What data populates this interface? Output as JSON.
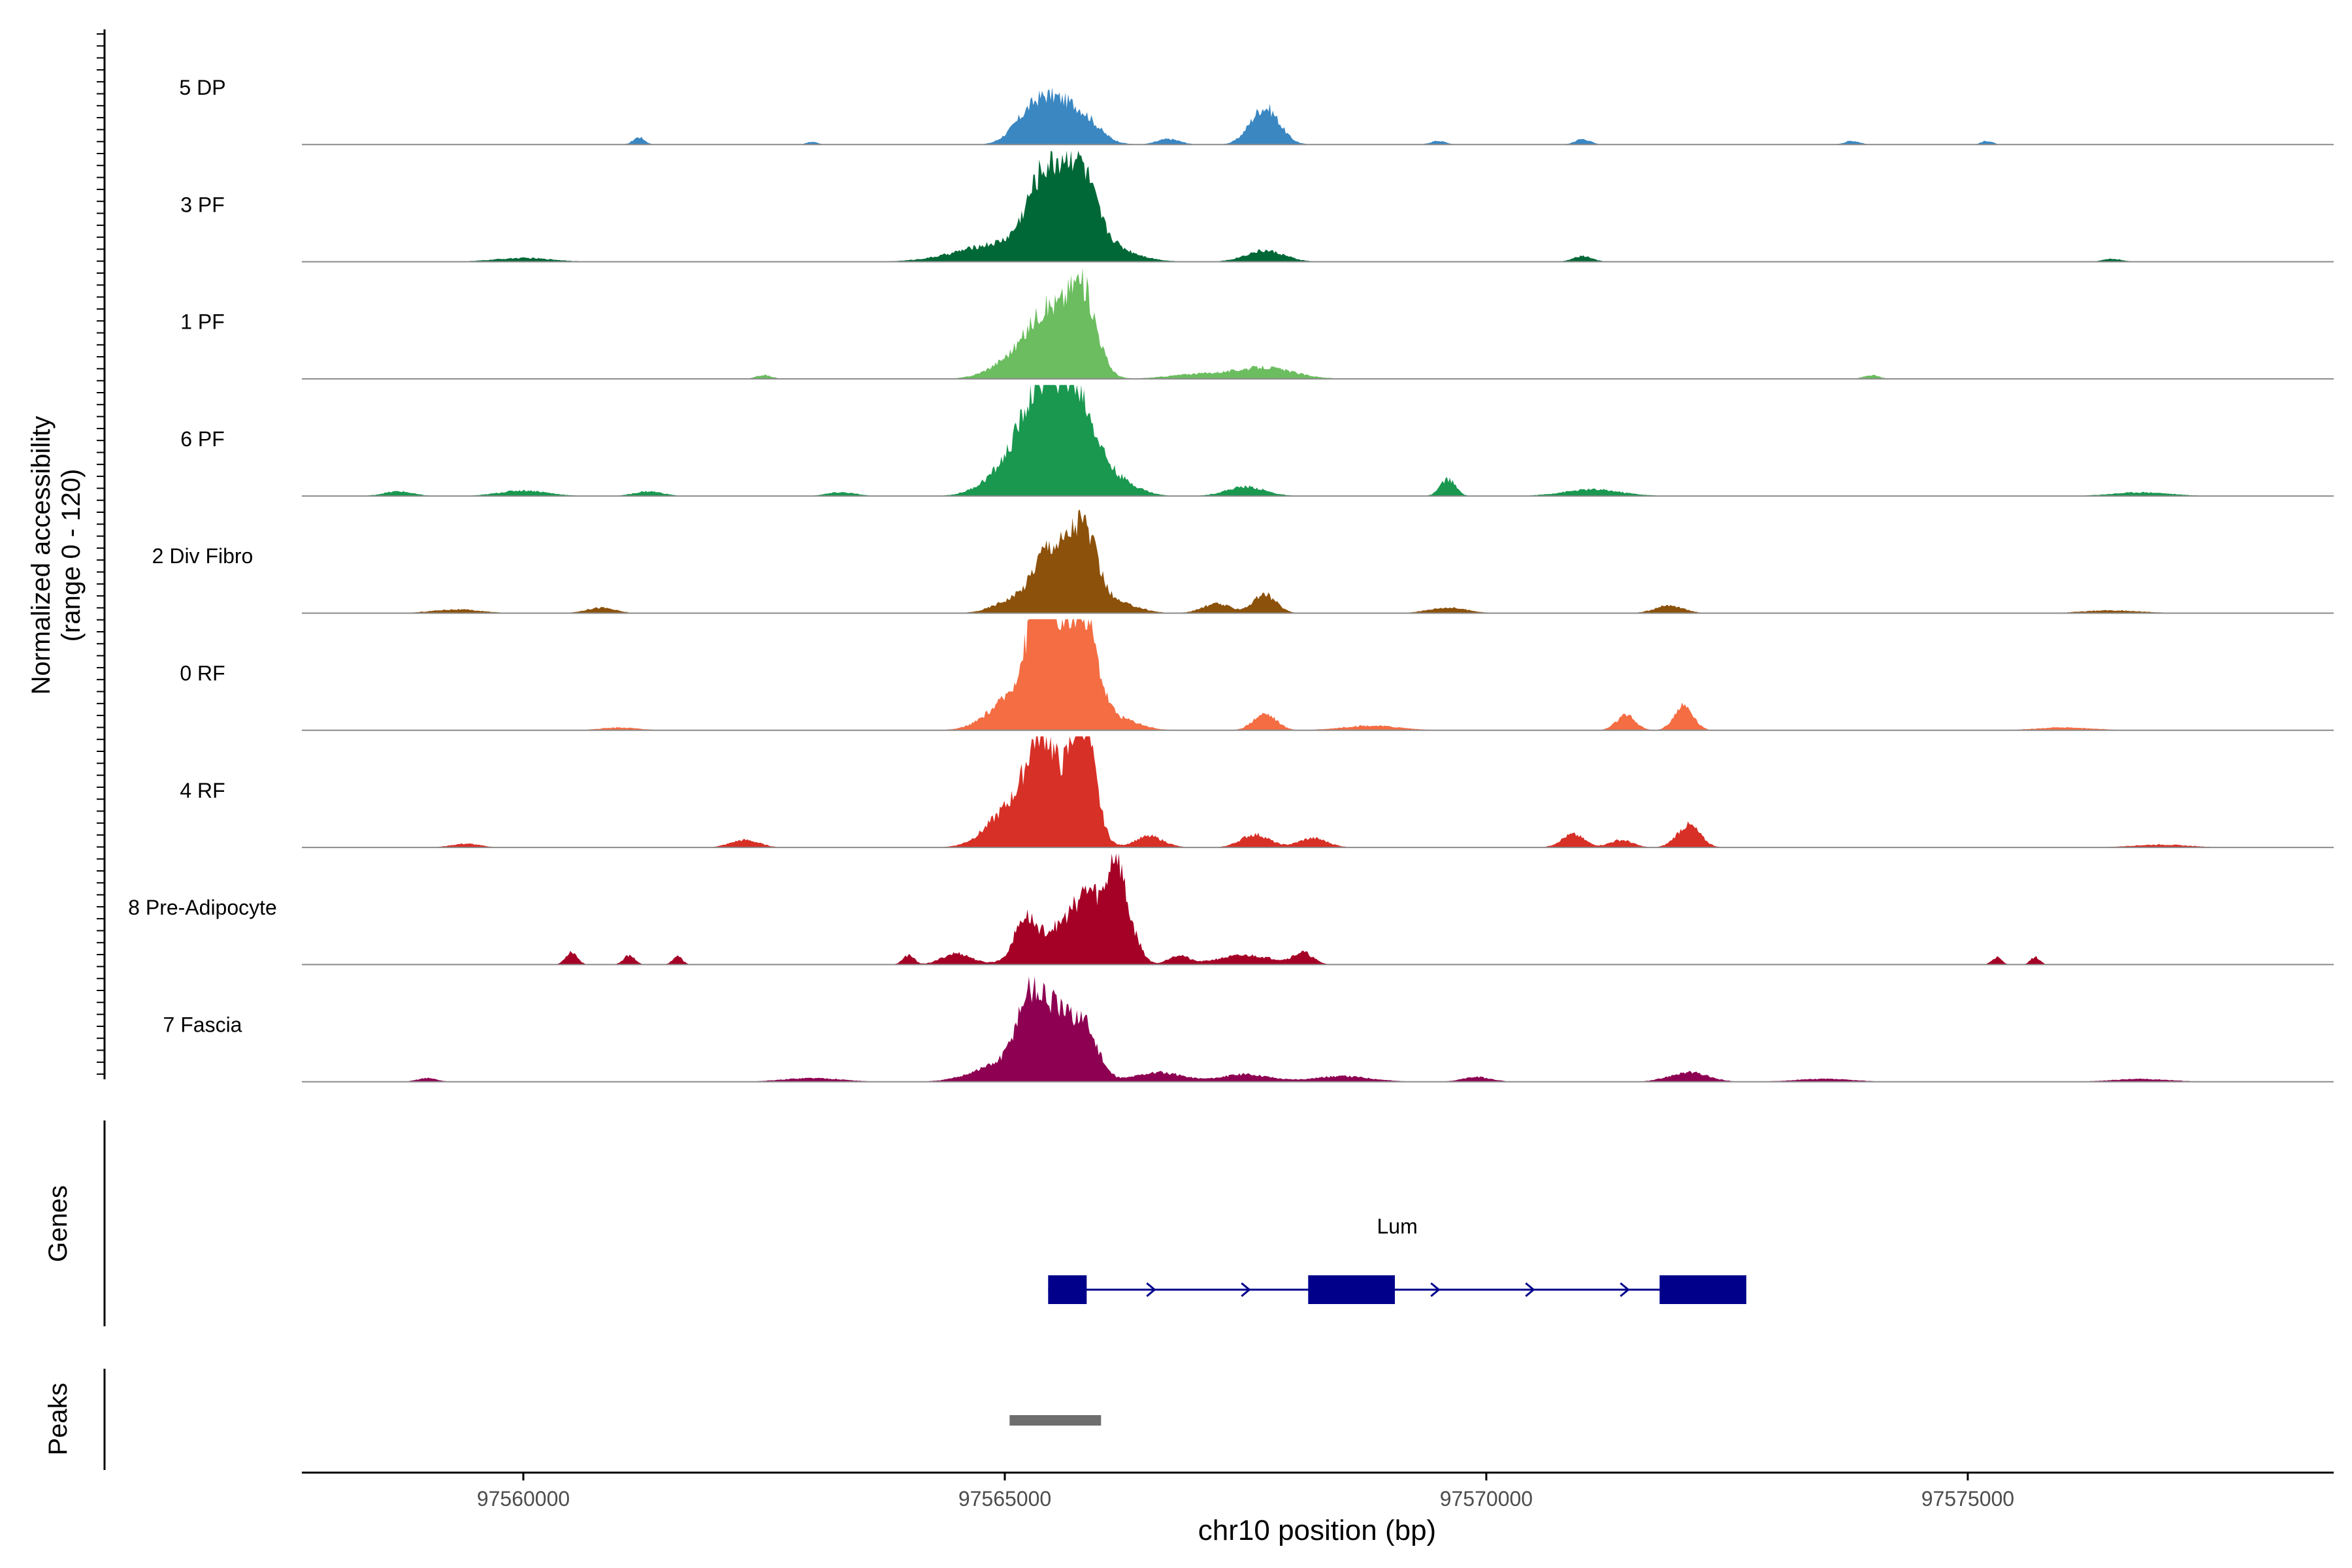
{
  "chart_data": {
    "type": "area",
    "xlabel": "chr10 position (bp)",
    "ylabel_line1": "Normalized accessibility",
    "ylabel_line2": "(range 0 - 120)",
    "ylim": [
      0,
      120
    ],
    "xlim": [
      97557700,
      97578800
    ],
    "xticks": [
      {
        "value": 97560000,
        "label": "97560000"
      },
      {
        "value": 97565000,
        "label": "97565000"
      },
      {
        "value": 97570000,
        "label": "97570000"
      },
      {
        "value": 97575000,
        "label": "97575000"
      }
    ],
    "series": [
      {
        "name": "5 DP",
        "color": "#3a87c2",
        "peaks": [
          [
            97565400,
            180,
            42
          ],
          [
            97565750,
            200,
            35
          ],
          [
            97565150,
            150,
            12
          ],
          [
            97567700,
            150,
            40
          ],
          [
            97561200,
            60,
            8
          ],
          [
            97563000,
            60,
            3
          ],
          [
            97566700,
            120,
            6
          ],
          [
            97569500,
            80,
            4
          ],
          [
            97571000,
            80,
            6
          ],
          [
            97573800,
            80,
            4
          ],
          [
            97575200,
            60,
            4
          ]
        ]
      },
      {
        "name": "3 PF",
        "color": "#006837",
        "peaks": [
          [
            97565400,
            170,
            75
          ],
          [
            97565750,
            170,
            88
          ],
          [
            97565000,
            450,
            20
          ],
          [
            97566000,
            300,
            18
          ],
          [
            97567700,
            200,
            12
          ],
          [
            97560000,
            300,
            4
          ],
          [
            97571000,
            100,
            6
          ],
          [
            97576500,
            100,
            3
          ]
        ]
      },
      {
        "name": "1 PF",
        "color": "#6bbd5f",
        "peaks": [
          [
            97565450,
            180,
            60
          ],
          [
            97565800,
            150,
            95
          ],
          [
            97565150,
            250,
            25
          ],
          [
            97567700,
            300,
            12
          ],
          [
            97567000,
            300,
            5
          ],
          [
            97562500,
            80,
            4
          ],
          [
            97574000,
            80,
            4
          ]
        ]
      },
      {
        "name": "6 PF",
        "color": "#1a9850",
        "peaks": [
          [
            97565380,
            200,
            100
          ],
          [
            97565750,
            200,
            100
          ],
          [
            97565050,
            250,
            28
          ],
          [
            97566200,
            200,
            14
          ],
          [
            97567500,
            200,
            10
          ],
          [
            97569600,
            80,
            18
          ],
          [
            97571100,
            300,
            7
          ],
          [
            97560000,
            250,
            6
          ],
          [
            97558700,
            150,
            5
          ],
          [
            97561300,
            150,
            5
          ],
          [
            97563300,
            150,
            4
          ],
          [
            97576800,
            300,
            4
          ]
        ]
      },
      {
        "name": "2 Div Fibro",
        "color": "#8c510a",
        "peaks": [
          [
            97565450,
            150,
            65
          ],
          [
            97565800,
            150,
            95
          ],
          [
            97565100,
            200,
            15
          ],
          [
            97566200,
            200,
            10
          ],
          [
            97567700,
            120,
            20
          ],
          [
            97567200,
            150,
            10
          ],
          [
            97569600,
            200,
            6
          ],
          [
            97571900,
            150,
            8
          ],
          [
            97560800,
            150,
            6
          ],
          [
            97559300,
            250,
            4
          ],
          [
            97576500,
            300,
            3
          ]
        ]
      },
      {
        "name": "0 RF",
        "color": "#f46d43",
        "peaks": [
          [
            97565400,
            150,
            135
          ],
          [
            97565800,
            150,
            130
          ],
          [
            97565100,
            250,
            35
          ],
          [
            97566200,
            200,
            12
          ],
          [
            97567700,
            120,
            18
          ],
          [
            97571450,
            100,
            16
          ],
          [
            97572050,
            100,
            26
          ],
          [
            97568800,
            300,
            5
          ],
          [
            97561000,
            200,
            3
          ],
          [
            97576000,
            300,
            3
          ]
        ]
      },
      {
        "name": "4 RF",
        "color": "#d73027",
        "peaks": [
          [
            97565400,
            150,
            105
          ],
          [
            97565800,
            130,
            140
          ],
          [
            97565100,
            250,
            45
          ],
          [
            97566500,
            150,
            12
          ],
          [
            97567600,
            150,
            14
          ],
          [
            97568200,
            150,
            10
          ],
          [
            97570900,
            120,
            14
          ],
          [
            97572100,
            120,
            24
          ],
          [
            97571400,
            120,
            8
          ],
          [
            97562300,
            150,
            8
          ],
          [
            97559400,
            150,
            4
          ],
          [
            97577000,
            300,
            3
          ]
        ]
      },
      {
        "name": "8 Pre-Adipocyte",
        "color": "#a50026",
        "peaks": [
          [
            97565200,
            100,
            35
          ],
          [
            97565600,
            300,
            40
          ],
          [
            97565900,
            150,
            55
          ],
          [
            97566150,
            80,
            90
          ],
          [
            97566300,
            100,
            35
          ],
          [
            97564000,
            60,
            10
          ],
          [
            97564500,
            150,
            12
          ],
          [
            97560500,
            60,
            14
          ],
          [
            97561100,
            60,
            10
          ],
          [
            97561600,
            50,
            9
          ],
          [
            97566800,
            100,
            10
          ],
          [
            97567500,
            300,
            10
          ],
          [
            97568100,
            100,
            12
          ],
          [
            97575300,
            50,
            8
          ],
          [
            97575700,
            50,
            8
          ]
        ]
      },
      {
        "name": "7 Fascia",
        "color": "#8e0152",
        "peaks": [
          [
            97565250,
            130,
            75
          ],
          [
            97565500,
            130,
            60
          ],
          [
            97565800,
            150,
            65
          ],
          [
            97565000,
            300,
            20
          ],
          [
            97566600,
            250,
            10
          ],
          [
            97567500,
            250,
            8
          ],
          [
            97568500,
            300,
            6
          ],
          [
            97572100,
            200,
            10
          ],
          [
            97569900,
            150,
            5
          ],
          [
            97563000,
            300,
            4
          ],
          [
            97559000,
            100,
            4
          ],
          [
            97573500,
            300,
            3
          ],
          [
            97576800,
            300,
            3
          ]
        ]
      }
    ],
    "genes": {
      "label": "Genes",
      "name": "Lum",
      "color": "#00008b",
      "start": 97565450,
      "end": 97572700,
      "exons": [
        [
          97565450,
          97565850
        ],
        [
          97568150,
          97569050
        ],
        [
          97571800,
          97572700
        ]
      ]
    },
    "peaks_track": {
      "label": "Peaks",
      "color": "#6e6e6e",
      "regions": [
        [
          97565050,
          97566000
        ]
      ]
    }
  }
}
